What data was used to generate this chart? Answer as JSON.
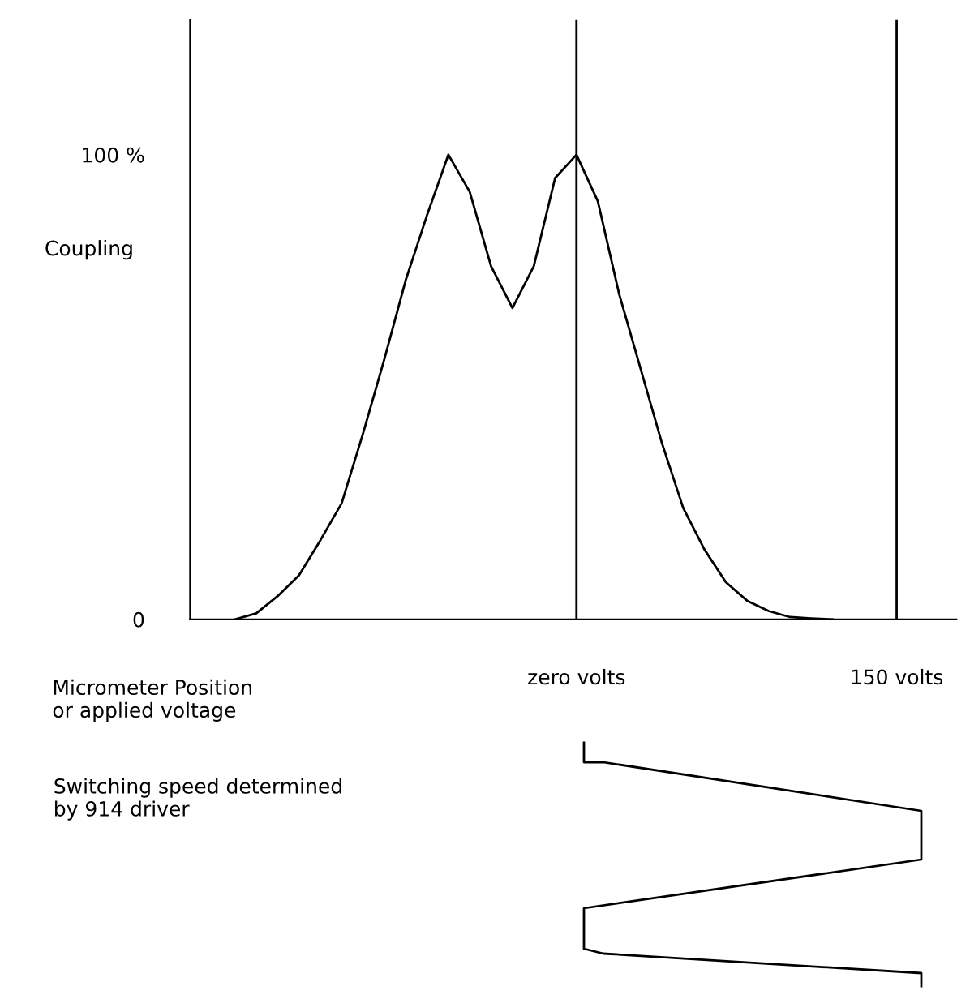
{
  "chart_data": {
    "type": "line",
    "xlabel": "Micrometer Position\nor applied voltage",
    "ylabel": "Coupling",
    "categories": [
      null,
      null,
      null,
      null,
      null,
      null,
      null,
      null,
      null,
      null,
      null,
      null,
      null,
      null,
      null,
      null,
      "zero volts",
      null,
      null,
      null,
      null,
      null,
      null,
      null,
      null,
      null,
      null,
      null,
      null,
      null,
      null,
      "150 volts"
    ],
    "values": [
      0,
      1.3,
      5,
      9.5,
      17,
      25,
      40,
      56,
      73,
      87,
      100,
      92,
      76,
      67,
      76,
      95,
      100,
      90,
      70,
      54,
      38,
      24,
      15,
      8,
      4,
      1.8,
      0.5,
      0.2,
      0,
      null,
      null,
      null
    ],
    "color": "#000000",
    "ylim": [
      0,
      129
    ],
    "yticks": [
      0,
      {
        "value": 100,
        "label": "100 %"
      }
    ],
    "ref_lines": [
      {
        "axis": "x",
        "value": "zero volts",
        "color": "#000000"
      },
      {
        "axis": "x",
        "value": "150 volts",
        "color": "#000000"
      }
    ],
    "annotations": [
      "Switching speed determined\nby 914 driver"
    ],
    "grid": false,
    "legend": false,
    "marker": "none",
    "line_style": "solid"
  }
}
